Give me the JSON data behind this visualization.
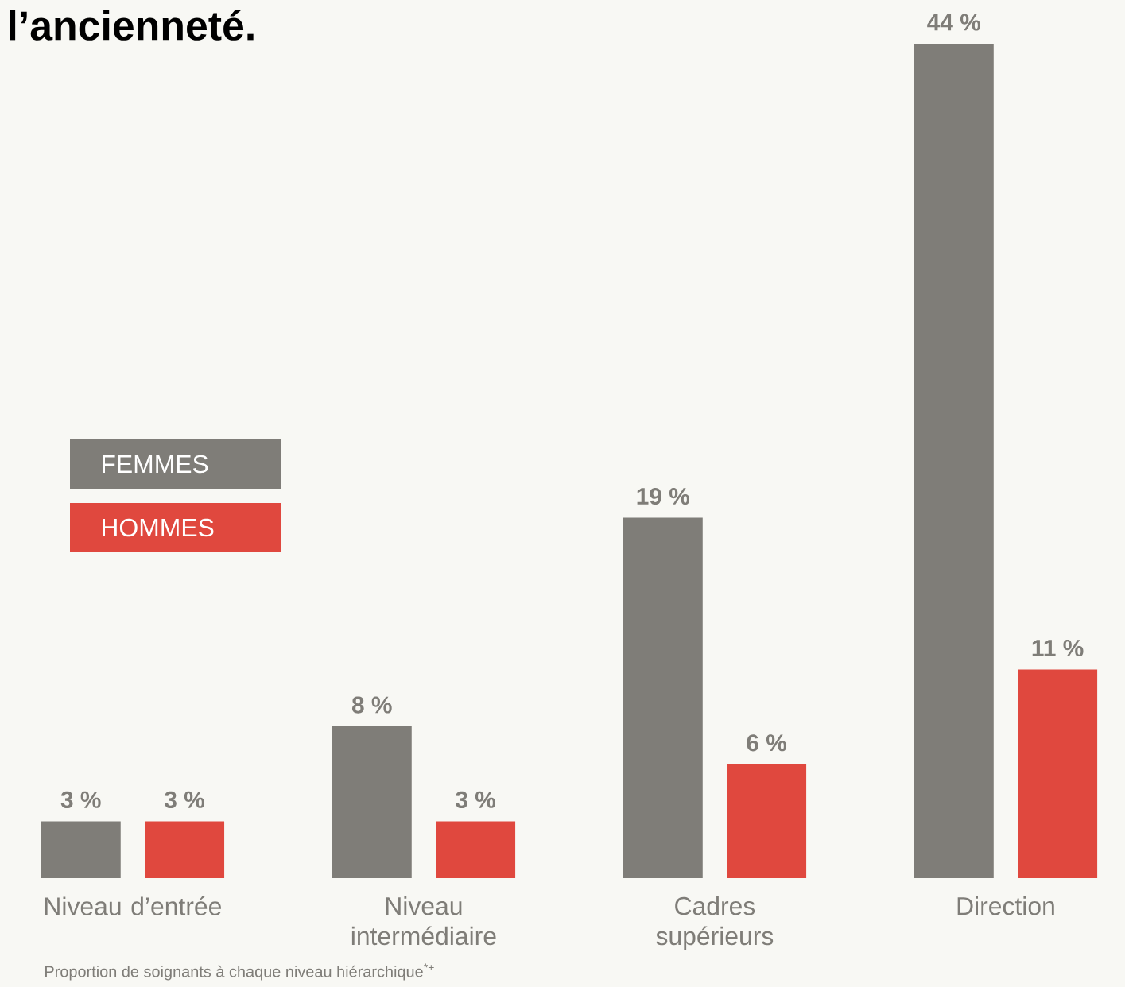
{
  "chart_data": {
    "type": "bar",
    "title": "l’ancienneté.",
    "categories": [
      "Niveau d’entrée",
      "Niveau intermédiaire",
      "Cadres supérieurs",
      "Direction"
    ],
    "series": [
      {
        "name": "FEMMES",
        "color": "#7f7d78",
        "values": [
          3,
          8,
          19,
          44
        ],
        "value_labels": [
          "3 %",
          "8 %",
          "19 %",
          "44 %"
        ]
      },
      {
        "name": "HOMMES",
        "color": "#e0483e",
        "values": [
          3,
          3,
          6,
          11
        ],
        "value_labels": [
          "3 %",
          "3 %",
          "6 %",
          "11 %"
        ]
      }
    ],
    "legend": "left",
    "annotations": [
      "Proportion de soignants à chaque niveau hiérarchique$^{*+}$"
    ]
  }
}
